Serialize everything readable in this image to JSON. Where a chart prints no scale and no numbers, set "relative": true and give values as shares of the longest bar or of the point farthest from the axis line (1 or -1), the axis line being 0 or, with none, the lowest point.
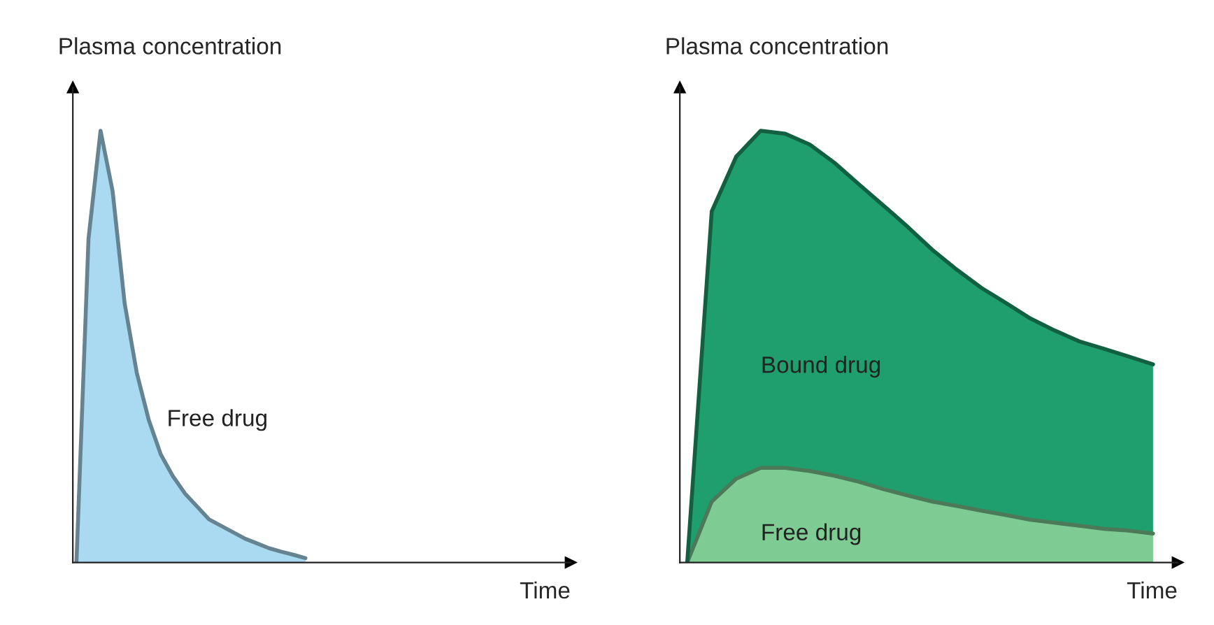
{
  "chart_data": [
    {
      "type": "area",
      "relative": true,
      "ylabel": "Plasma concentration",
      "xlabel": "Time",
      "categories": [
        null,
        null,
        null,
        null,
        null,
        null,
        null,
        null,
        null,
        null,
        null,
        null,
        null,
        null,
        null,
        null,
        null,
        null,
        null,
        null,
        null,
        null,
        null,
        null,
        null,
        null,
        null,
        null,
        null,
        null,
        null,
        null,
        null,
        null,
        null,
        null,
        null,
        null,
        null,
        null
      ],
      "series": [
        {
          "name": "Free drug",
          "color": "#aadaf2",
          "values": [
            0,
            0.75,
            1.0,
            0.86,
            0.6,
            0.44,
            0.33,
            0.25,
            0.2,
            0.16,
            0.13,
            0.1,
            0.085,
            0.07,
            0.055,
            0.044,
            0.033,
            0.025,
            0.018,
            0.01,
            null,
            null,
            null,
            null,
            null,
            null,
            null,
            null,
            null,
            null,
            null,
            null,
            null,
            null,
            null,
            null,
            null,
            null,
            null,
            null
          ]
        }
      ]
    },
    {
      "type": "area",
      "relative": true,
      "stacked": true,
      "ylabel": "Plasma concentration",
      "xlabel": "Time",
      "categories": [
        null,
        null,
        null,
        null,
        null,
        null,
        null,
        null,
        null,
        null,
        null,
        null,
        null,
        null,
        null,
        null,
        null,
        null,
        null,
        null
      ],
      "series": [
        {
          "name": "Free drug",
          "color": "#7fcb94",
          "values": [
            0,
            0.141,
            0.194,
            0.219,
            0.219,
            0.212,
            0.201,
            0.187,
            0.17,
            0.155,
            0.141,
            0.131,
            0.12,
            0.11,
            0.099,
            0.092,
            0.085,
            0.078,
            0.074,
            0.067
          ]
        },
        {
          "name": "Bound drug",
          "color": "#1f9e6e",
          "values": [
            0,
            0.672,
            0.746,
            0.781,
            0.774,
            0.756,
            0.725,
            0.689,
            0.657,
            0.622,
            0.583,
            0.547,
            0.516,
            0.491,
            0.466,
            0.445,
            0.427,
            0.417,
            0.403,
            0.392
          ]
        }
      ]
    }
  ]
}
